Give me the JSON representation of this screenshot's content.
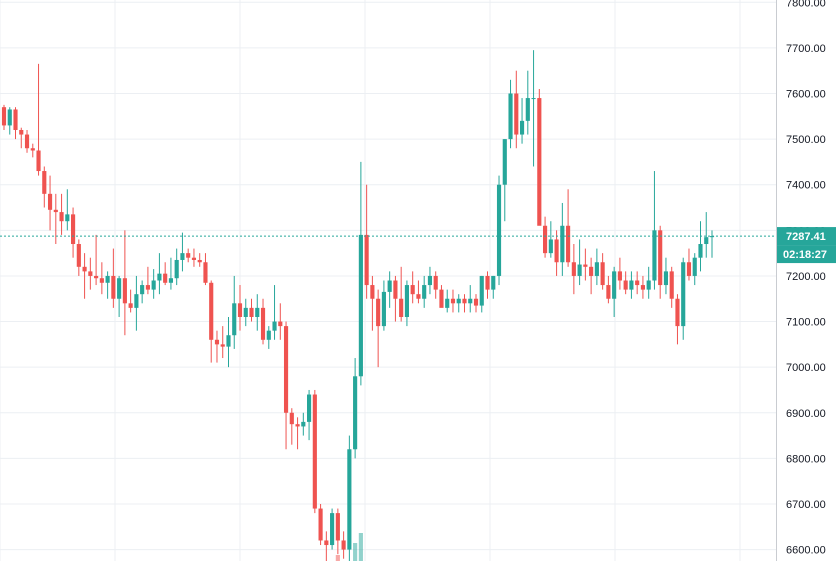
{
  "chart_data": {
    "type": "candlestick",
    "ylim": [
      6575,
      7805
    ],
    "y_ticks": [
      "7800.00",
      "7700.00",
      "7600.00",
      "7500.00",
      "7400.00",
      "7300.00",
      "7200.00",
      "7100.00",
      "7000.00",
      "6900.00",
      "6800.00",
      "6700.00",
      "6600.00"
    ],
    "grid": true,
    "current_price": 7287.41,
    "current_price_label": "7287.41",
    "countdown_label": "02:18:27",
    "colors": {
      "up": "#26a69a",
      "down": "#ef5350",
      "grid": "#eceff3",
      "axis_text": "#131722"
    },
    "candles": [
      [
        7570,
        7575,
        7520,
        7530
      ],
      [
        7530,
        7570,
        7510,
        7565
      ],
      [
        7565,
        7570,
        7500,
        7520
      ],
      [
        7520,
        7525,
        7480,
        7510
      ],
      [
        7510,
        7520,
        7470,
        7480
      ],
      [
        7480,
        7490,
        7460,
        7475
      ],
      [
        7475,
        7665,
        7420,
        7430
      ],
      [
        7430,
        7440,
        7350,
        7380
      ],
      [
        7380,
        7420,
        7300,
        7345
      ],
      [
        7345,
        7380,
        7270,
        7340
      ],
      [
        7340,
        7380,
        7290,
        7320
      ],
      [
        7320,
        7390,
        7300,
        7335
      ],
      [
        7335,
        7350,
        7240,
        7270
      ],
      [
        7270,
        7280,
        7200,
        7220
      ],
      [
        7220,
        7250,
        7150,
        7210
      ],
      [
        7210,
        7240,
        7170,
        7200
      ],
      [
        7200,
        7290,
        7180,
        7195
      ],
      [
        7195,
        7230,
        7160,
        7185
      ],
      [
        7185,
        7210,
        7150,
        7200
      ],
      [
        7200,
        7260,
        7130,
        7150
      ],
      [
        7150,
        7200,
        7110,
        7195
      ],
      [
        7195,
        7300,
        7070,
        7140
      ],
      [
        7140,
        7170,
        7120,
        7130
      ],
      [
        7130,
        7200,
        7080,
        7160
      ],
      [
        7160,
        7190,
        7140,
        7180
      ],
      [
        7180,
        7220,
        7160,
        7170
      ],
      [
        7170,
        7215,
        7150,
        7190
      ],
      [
        7190,
        7250,
        7160,
        7205
      ],
      [
        7205,
        7230,
        7180,
        7185
      ],
      [
        7185,
        7240,
        7170,
        7195
      ],
      [
        7195,
        7260,
        7180,
        7235
      ],
      [
        7235,
        7295,
        7210,
        7250
      ],
      [
        7250,
        7260,
        7230,
        7240
      ],
      [
        7240,
        7260,
        7220,
        7235
      ],
      [
        7235,
        7250,
        7220,
        7230
      ],
      [
        7230,
        7250,
        7180,
        7185
      ],
      [
        7185,
        7190,
        7010,
        7060
      ],
      [
        7060,
        7080,
        7010,
        7050
      ],
      [
        7050,
        7090,
        7020,
        7045
      ],
      [
        7045,
        7110,
        7000,
        7070
      ],
      [
        7070,
        7200,
        7040,
        7140
      ],
      [
        7140,
        7180,
        7080,
        7110
      ],
      [
        7110,
        7150,
        7090,
        7130
      ],
      [
        7130,
        7150,
        7100,
        7110
      ],
      [
        7110,
        7160,
        7080,
        7130
      ],
      [
        7130,
        7150,
        7050,
        7060
      ],
      [
        7060,
        7090,
        7040,
        7080
      ],
      [
        7080,
        7180,
        7060,
        7100
      ],
      [
        7100,
        7140,
        7060,
        7090
      ],
      [
        7090,
        7100,
        6820,
        6900
      ],
      [
        6900,
        6910,
        6830,
        6875
      ],
      [
        6875,
        6890,
        6820,
        6870
      ],
      [
        6870,
        6900,
        6850,
        6880
      ],
      [
        6880,
        6950,
        6840,
        6940
      ],
      [
        6940,
        6950,
        6680,
        6690
      ],
      [
        6690,
        6700,
        6610,
        6620
      ],
      [
        6620,
        6640,
        6560,
        6610
      ],
      [
        6610,
        6690,
        6600,
        6680
      ],
      [
        6680,
        6690,
        6590,
        6620
      ],
      [
        6620,
        6640,
        6580,
        6600
      ],
      [
        6600,
        6850,
        6570,
        6820
      ],
      [
        6820,
        7020,
        6800,
        6980
      ],
      [
        6980,
        7450,
        6960,
        7290
      ],
      [
        7290,
        7400,
        7150,
        7180
      ],
      [
        7180,
        7200,
        7080,
        7150
      ],
      [
        7150,
        7170,
        7000,
        7090
      ],
      [
        7090,
        7190,
        7080,
        7165
      ],
      [
        7165,
        7210,
        7130,
        7190
      ],
      [
        7190,
        7200,
        7100,
        7150
      ],
      [
        7150,
        7220,
        7100,
        7110
      ],
      [
        7110,
        7190,
        7090,
        7180
      ],
      [
        7180,
        7210,
        7140,
        7160
      ],
      [
        7160,
        7190,
        7140,
        7150
      ],
      [
        7150,
        7200,
        7130,
        7180
      ],
      [
        7180,
        7220,
        7160,
        7200
      ],
      [
        7200,
        7210,
        7150,
        7170
      ],
      [
        7170,
        7180,
        7140,
        7130
      ],
      [
        7130,
        7170,
        7120,
        7150
      ],
      [
        7150,
        7170,
        7120,
        7140
      ],
      [
        7140,
        7160,
        7120,
        7150
      ],
      [
        7150,
        7160,
        7120,
        7140
      ],
      [
        7140,
        7180,
        7120,
        7150
      ],
      [
        7150,
        7160,
        7120,
        7135
      ],
      [
        7135,
        7200,
        7120,
        7200
      ],
      [
        7200,
        7210,
        7150,
        7170
      ],
      [
        7170,
        7200,
        7150,
        7200
      ],
      [
        7200,
        7420,
        7180,
        7400
      ],
      [
        7400,
        7500,
        7320,
        7500
      ],
      [
        7500,
        7630,
        7480,
        7600
      ],
      [
        7600,
        7650,
        7480,
        7510
      ],
      [
        7510,
        7590,
        7490,
        7540
      ],
      [
        7540,
        7650,
        7510,
        7590
      ],
      [
        7590,
        7695,
        7440,
        7590
      ],
      [
        7590,
        7610,
        7320,
        7310
      ],
      [
        7310,
        7330,
        7240,
        7250
      ],
      [
        7250,
        7320,
        7240,
        7280
      ],
      [
        7280,
        7300,
        7200,
        7230
      ],
      [
        7230,
        7360,
        7200,
        7310
      ],
      [
        7310,
        7390,
        7220,
        7230
      ],
      [
        7230,
        7270,
        7160,
        7200
      ],
      [
        7200,
        7280,
        7180,
        7225
      ],
      [
        7225,
        7260,
        7190,
        7220
      ],
      [
        7220,
        7240,
        7160,
        7200
      ],
      [
        7200,
        7260,
        7180,
        7230
      ],
      [
        7230,
        7250,
        7170,
        7180
      ],
      [
        7180,
        7200,
        7140,
        7150
      ],
      [
        7150,
        7220,
        7110,
        7210
      ],
      [
        7210,
        7240,
        7170,
        7190
      ],
      [
        7190,
        7210,
        7160,
        7170
      ],
      [
        7170,
        7210,
        7150,
        7190
      ],
      [
        7190,
        7210,
        7160,
        7180
      ],
      [
        7180,
        7200,
        7150,
        7170
      ],
      [
        7170,
        7220,
        7150,
        7190
      ],
      [
        7190,
        7430,
        7170,
        7300
      ],
      [
        7300,
        7310,
        7150,
        7180
      ],
      [
        7180,
        7240,
        7160,
        7210
      ],
      [
        7210,
        7220,
        7130,
        7150
      ],
      [
        7150,
        7160,
        7050,
        7090
      ],
      [
        7090,
        7240,
        7060,
        7230
      ],
      [
        7230,
        7260,
        7190,
        7200
      ],
      [
        7200,
        7250,
        7180,
        7240
      ],
      [
        7240,
        7320,
        7210,
        7270
      ],
      [
        7270,
        7340,
        7240,
        7285
      ],
      [
        7285,
        7300,
        7240,
        7287.41
      ]
    ],
    "volume_bars": [
      {
        "index": 58,
        "value": 0.15,
        "direction": "down"
      },
      {
        "index": 61,
        "value": 0.45,
        "direction": "up"
      },
      {
        "index": 62,
        "value": 0.7,
        "direction": "up"
      }
    ]
  }
}
